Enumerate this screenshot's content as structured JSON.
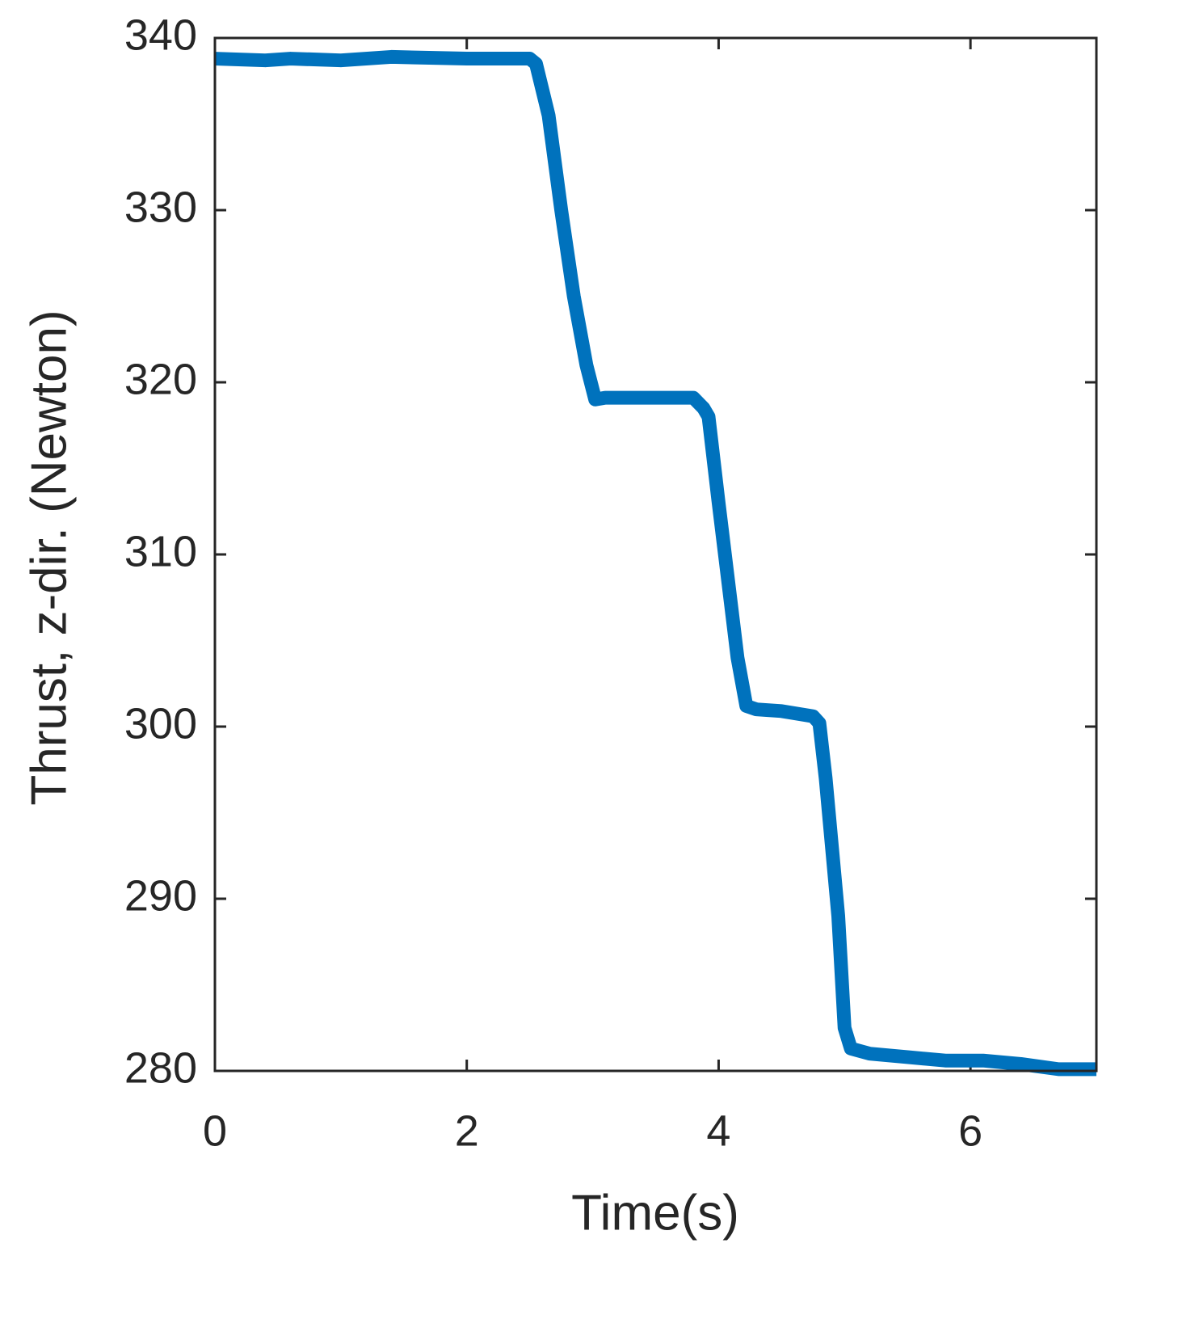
{
  "chart_data": {
    "type": "line",
    "x_label": "Time(s)",
    "y_label": "Thrust, z-dir. (Newton)",
    "x": [
      0,
      0.4,
      0.6,
      1.0,
      1.4,
      2.0,
      2.5,
      2.55,
      2.65,
      2.75,
      2.85,
      2.95,
      3.02,
      3.1,
      3.8,
      3.88,
      3.92,
      4.0,
      4.1,
      4.15,
      4.22,
      4.3,
      4.5,
      4.75,
      4.8,
      4.85,
      4.9,
      4.95,
      5.0,
      5.05,
      5.2,
      5.5,
      5.8,
      6.1,
      6.4,
      6.7,
      7.0
    ],
    "series": [
      {
        "color": "#0072bd",
        "values": [
          338.8,
          338.7,
          338.8,
          338.7,
          338.9,
          338.8,
          338.8,
          338.5,
          335.5,
          330,
          325,
          321,
          319,
          319.1,
          319.1,
          318.5,
          318,
          313,
          307,
          304,
          301.2,
          301,
          300.9,
          300.6,
          300.2,
          297,
          293,
          289,
          282.5,
          281.3,
          281,
          280.8,
          280.6,
          280.6,
          280.4,
          280.1,
          280.1
        ]
      }
    ],
    "xlim": [
      0,
      7
    ],
    "xticks": [
      0,
      2,
      4,
      6
    ],
    "ylim": [
      280,
      340
    ],
    "yticks": [
      280,
      290,
      300,
      310,
      320,
      330,
      340
    ],
    "grid": false
  }
}
